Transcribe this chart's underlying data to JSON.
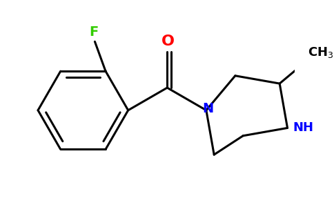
{
  "background_color": "#ffffff",
  "bond_color": "#000000",
  "atom_colors": {
    "F": "#33cc00",
    "O": "#ff0000",
    "N": "#0000ff",
    "NH": "#0000ff",
    "C": "#000000"
  },
  "font_size_atoms": 13,
  "font_size_ch3": 12,
  "line_width": 2.2,
  "figsize": [
    4.84,
    3.0
  ],
  "dpi": 100
}
